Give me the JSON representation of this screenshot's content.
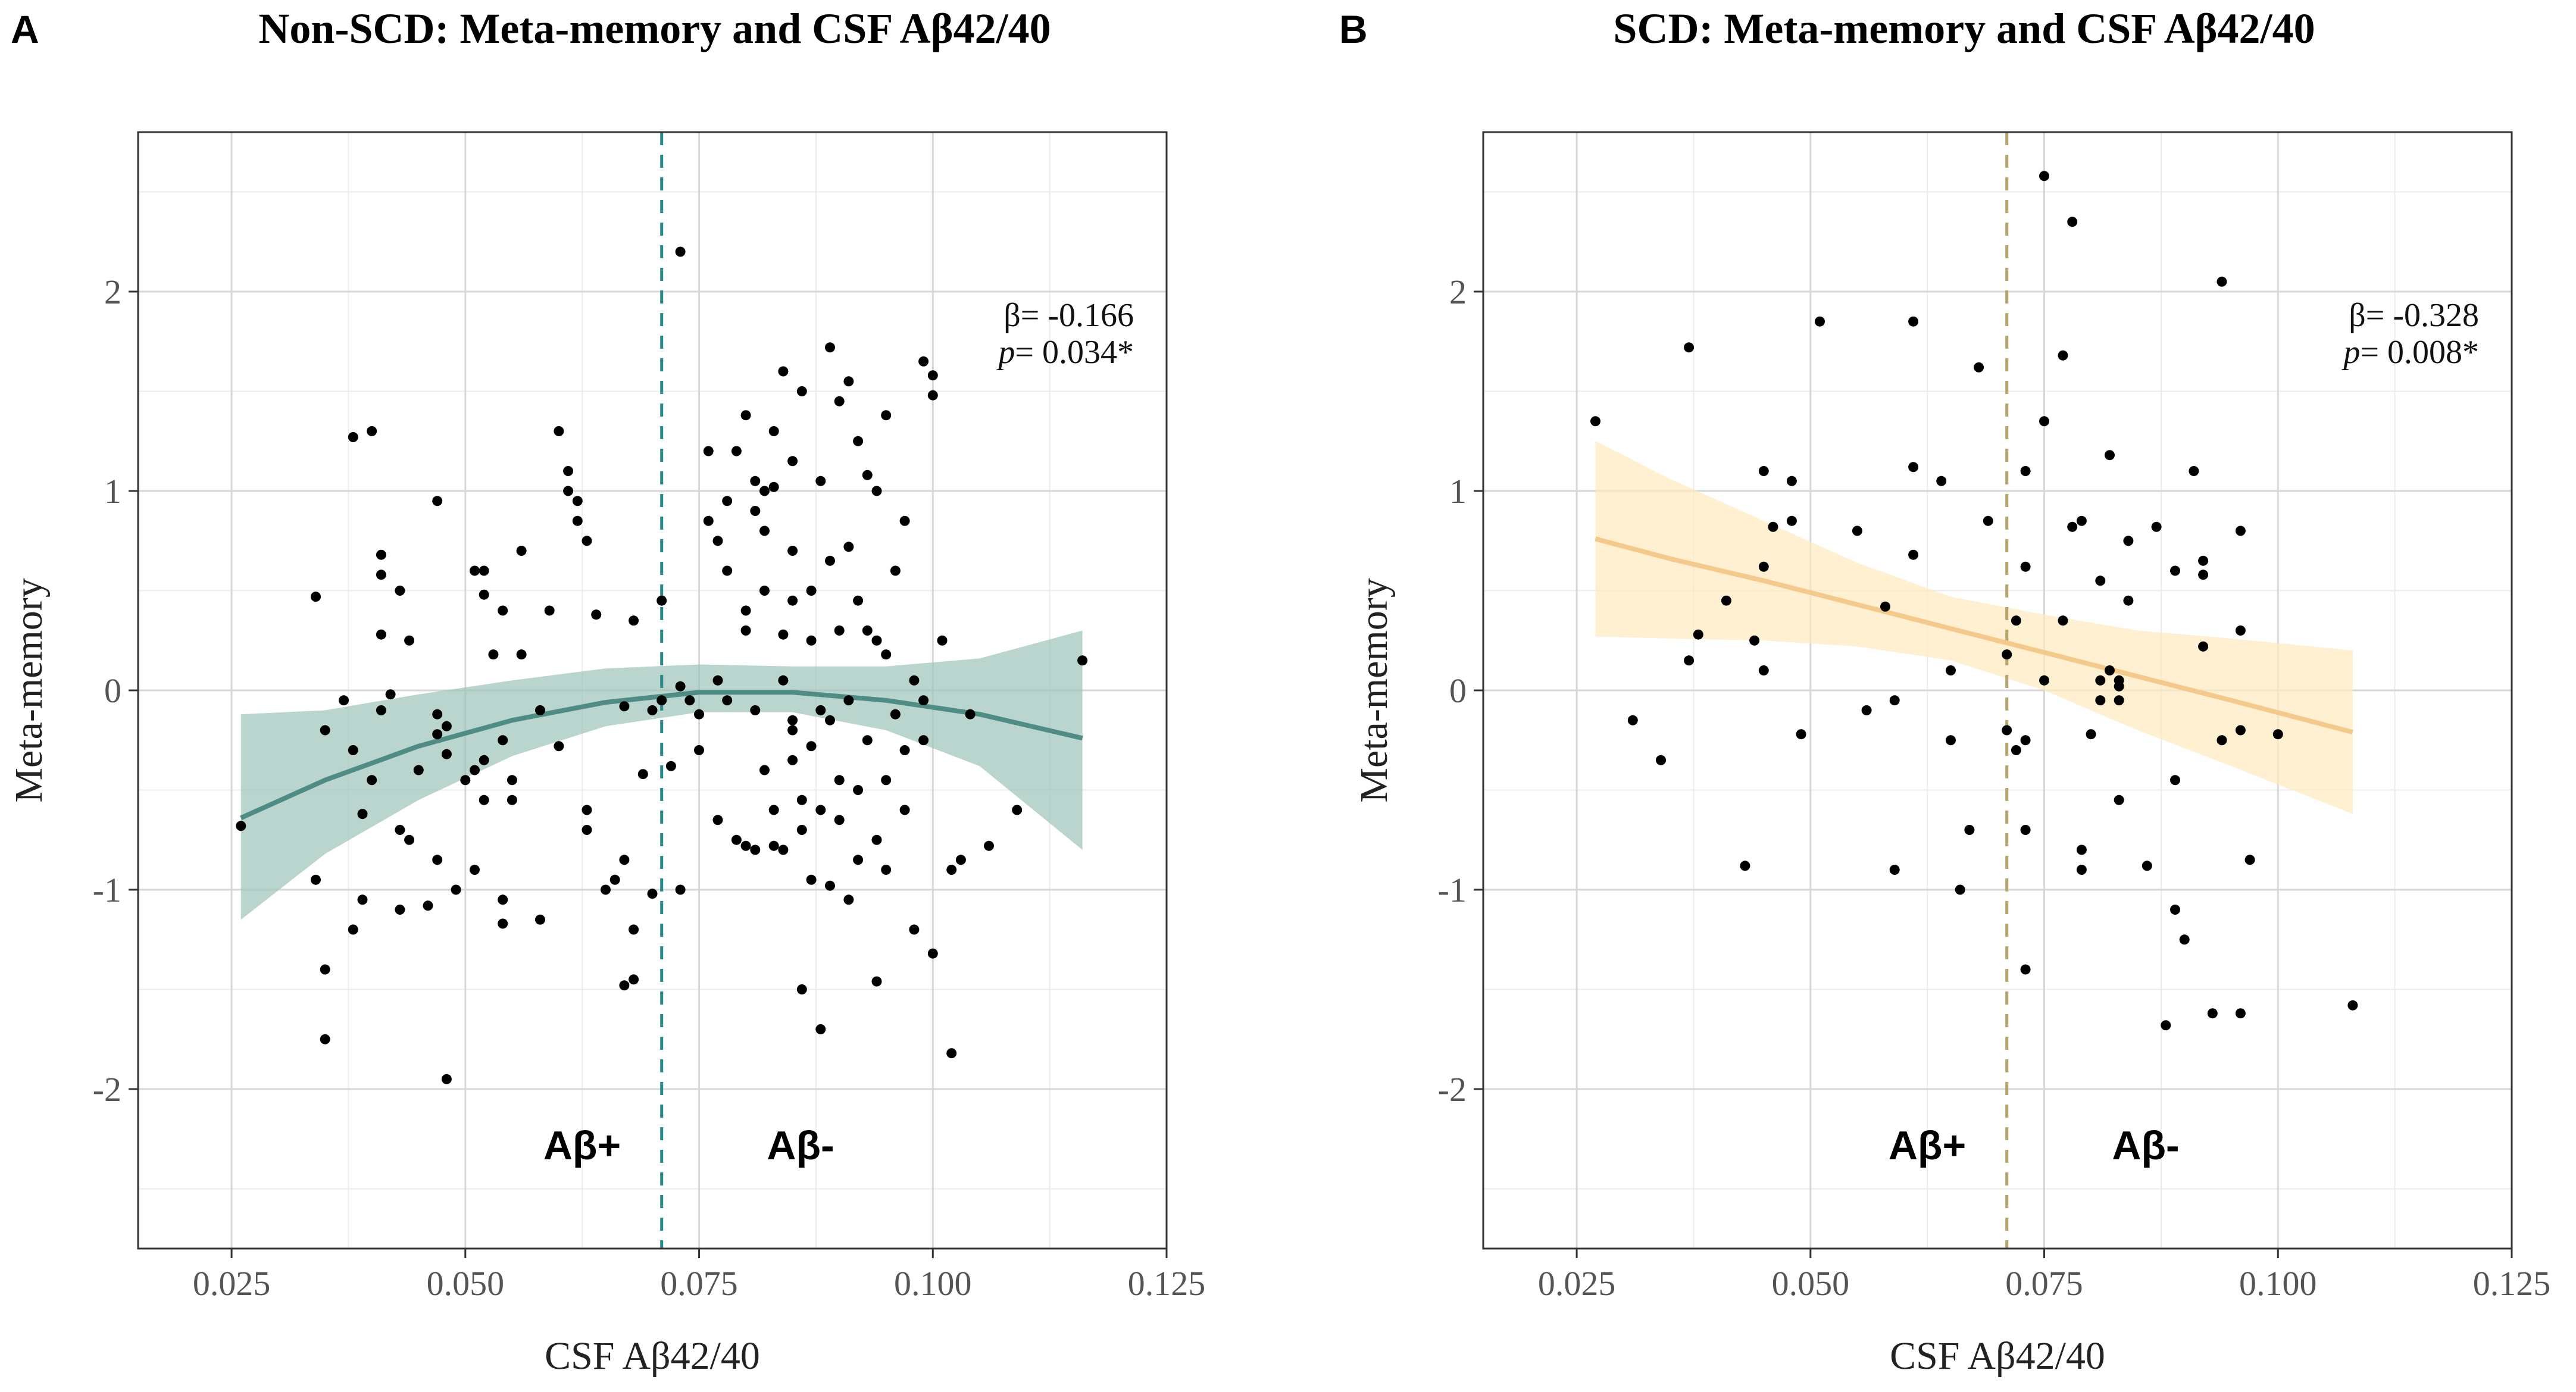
{
  "chart_data": [
    {
      "panel": "A",
      "type": "scatter",
      "title": "Non-SCD: Meta-memory and CSF Aβ42/40",
      "xlabel": "CSF Aβ42/40",
      "ylabel": "Meta-memory",
      "xlim": [
        0.015,
        0.125
      ],
      "ylim": [
        -2.8,
        2.8
      ],
      "xticks": [
        0.025,
        0.05,
        0.075,
        0.1,
        0.125
      ],
      "xtick_labels": [
        "0.025",
        "0.050",
        "0.075",
        "0.100",
        "0.125"
      ],
      "yticks": [
        -2,
        -1,
        0,
        1,
        2
      ],
      "ytick_labels": [
        "-2",
        "-1",
        "0",
        "1",
        "2"
      ],
      "cutoff": {
        "x": 0.071,
        "color": "#2b8a8a"
      },
      "region_labels": {
        "left": "Aβ+",
        "right": "Aβ-"
      },
      "stats": {
        "beta": "β= -0.166",
        "p_label": "p",
        "p_value": "= 0.034*"
      },
      "fit": {
        "kind": "quadratic",
        "line_color": "#4e8c84",
        "band_color": "#9cc2b9",
        "x": [
          0.026,
          0.035,
          0.045,
          0.055,
          0.065,
          0.075,
          0.085,
          0.095,
          0.105,
          0.116
        ],
        "y": [
          -0.64,
          -0.45,
          -0.28,
          -0.15,
          -0.06,
          -0.01,
          -0.01,
          -0.05,
          -0.12,
          -0.24
        ],
        "lower": [
          -1.15,
          -0.82,
          -0.55,
          -0.33,
          -0.18,
          -0.11,
          -0.11,
          -0.2,
          -0.38,
          -0.8
        ],
        "upper": [
          -0.12,
          -0.1,
          -0.02,
          0.05,
          0.11,
          0.13,
          0.12,
          0.12,
          0.16,
          0.3
        ]
      },
      "points": [
        [
          0.026,
          -0.68
        ],
        [
          0.034,
          0.47
        ],
        [
          0.034,
          -0.95
        ],
        [
          0.035,
          -1.4
        ],
        [
          0.035,
          -1.75
        ],
        [
          0.035,
          -0.2
        ],
        [
          0.037,
          -0.05
        ],
        [
          0.038,
          1.27
        ],
        [
          0.038,
          -1.2
        ],
        [
          0.038,
          -0.3
        ],
        [
          0.039,
          -0.62
        ],
        [
          0.039,
          -1.05
        ],
        [
          0.04,
          1.3
        ],
        [
          0.04,
          -0.45
        ],
        [
          0.041,
          0.68
        ],
        [
          0.041,
          0.58
        ],
        [
          0.041,
          0.28
        ],
        [
          0.041,
          -0.1
        ],
        [
          0.042,
          -0.02
        ],
        [
          0.043,
          0.5
        ],
        [
          0.043,
          -0.7
        ],
        [
          0.043,
          -1.1
        ],
        [
          0.044,
          0.25
        ],
        [
          0.044,
          -0.75
        ],
        [
          0.045,
          -0.4
        ],
        [
          0.046,
          -1.08
        ],
        [
          0.047,
          0.95
        ],
        [
          0.047,
          -0.12
        ],
        [
          0.047,
          -0.22
        ],
        [
          0.047,
          -0.85
        ],
        [
          0.048,
          -1.95
        ],
        [
          0.048,
          -0.18
        ],
        [
          0.048,
          -0.32
        ],
        [
          0.049,
          -1.0
        ],
        [
          0.05,
          -0.45
        ],
        [
          0.051,
          0.6
        ],
        [
          0.051,
          -0.9
        ],
        [
          0.051,
          -0.4
        ],
        [
          0.052,
          0.6
        ],
        [
          0.052,
          0.48
        ],
        [
          0.052,
          -0.35
        ],
        [
          0.052,
          -0.55
        ],
        [
          0.053,
          0.18
        ],
        [
          0.054,
          0.4
        ],
        [
          0.054,
          -1.05
        ],
        [
          0.054,
          -1.17
        ],
        [
          0.054,
          -0.25
        ],
        [
          0.055,
          -0.55
        ],
        [
          0.055,
          -0.45
        ],
        [
          0.056,
          0.7
        ],
        [
          0.056,
          0.18
        ],
        [
          0.058,
          -0.1
        ],
        [
          0.058,
          -1.15
        ],
        [
          0.059,
          0.4
        ],
        [
          0.06,
          1.3
        ],
        [
          0.06,
          -0.28
        ],
        [
          0.061,
          1.1
        ],
        [
          0.061,
          1.0
        ],
        [
          0.062,
          0.95
        ],
        [
          0.062,
          0.85
        ],
        [
          0.063,
          0.75
        ],
        [
          0.063,
          -0.6
        ],
        [
          0.063,
          -0.7
        ],
        [
          0.064,
          0.38
        ],
        [
          0.065,
          -1.0
        ],
        [
          0.066,
          -0.95
        ],
        [
          0.067,
          -1.48
        ],
        [
          0.067,
          -0.08
        ],
        [
          0.067,
          -0.85
        ],
        [
          0.068,
          0.35
        ],
        [
          0.068,
          -1.45
        ],
        [
          0.068,
          -1.2
        ],
        [
          0.069,
          -0.42
        ],
        [
          0.07,
          -0.1
        ],
        [
          0.07,
          -1.02
        ],
        [
          0.071,
          -0.05
        ],
        [
          0.071,
          0.45
        ],
        [
          0.072,
          -0.38
        ],
        [
          0.073,
          2.2
        ],
        [
          0.073,
          0.02
        ],
        [
          0.073,
          -1.0
        ],
        [
          0.074,
          -0.05
        ],
        [
          0.075,
          -0.3
        ],
        [
          0.075,
          -0.12
        ],
        [
          0.076,
          1.2
        ],
        [
          0.076,
          0.85
        ],
        [
          0.077,
          0.75
        ],
        [
          0.077,
          0.05
        ],
        [
          0.077,
          -0.65
        ],
        [
          0.078,
          0.95
        ],
        [
          0.078,
          0.6
        ],
        [
          0.078,
          -0.05
        ],
        [
          0.079,
          1.2
        ],
        [
          0.079,
          -0.75
        ],
        [
          0.08,
          1.38
        ],
        [
          0.08,
          0.4
        ],
        [
          0.08,
          0.3
        ],
        [
          0.08,
          -0.78
        ],
        [
          0.081,
          1.05
        ],
        [
          0.081,
          0.9
        ],
        [
          0.081,
          -0.1
        ],
        [
          0.081,
          -0.8
        ],
        [
          0.082,
          1.0
        ],
        [
          0.082,
          0.8
        ],
        [
          0.082,
          0.5
        ],
        [
          0.082,
          -0.4
        ],
        [
          0.083,
          1.3
        ],
        [
          0.083,
          1.02
        ],
        [
          0.083,
          -0.6
        ],
        [
          0.083,
          -0.78
        ],
        [
          0.084,
          1.6
        ],
        [
          0.084,
          0.28
        ],
        [
          0.084,
          0.05
        ],
        [
          0.084,
          -0.8
        ],
        [
          0.085,
          1.15
        ],
        [
          0.085,
          0.7
        ],
        [
          0.085,
          0.45
        ],
        [
          0.085,
          -0.15
        ],
        [
          0.085,
          -0.2
        ],
        [
          0.085,
          -0.35
        ],
        [
          0.086,
          1.5
        ],
        [
          0.086,
          -0.55
        ],
        [
          0.086,
          -1.5
        ],
        [
          0.086,
          -0.7
        ],
        [
          0.087,
          0.5
        ],
        [
          0.087,
          0.25
        ],
        [
          0.087,
          -0.28
        ],
        [
          0.087,
          -0.95
        ],
        [
          0.088,
          1.05
        ],
        [
          0.088,
          -1.7
        ],
        [
          0.088,
          -0.1
        ],
        [
          0.088,
          -0.6
        ],
        [
          0.089,
          1.72
        ],
        [
          0.089,
          0.65
        ],
        [
          0.089,
          -0.15
        ],
        [
          0.089,
          -0.98
        ],
        [
          0.09,
          1.45
        ],
        [
          0.09,
          0.3
        ],
        [
          0.09,
          -0.45
        ],
        [
          0.09,
          -0.65
        ],
        [
          0.091,
          1.55
        ],
        [
          0.091,
          0.72
        ],
        [
          0.091,
          -0.05
        ],
        [
          0.091,
          -1.05
        ],
        [
          0.092,
          1.25
        ],
        [
          0.092,
          0.45
        ],
        [
          0.092,
          -0.5
        ],
        [
          0.092,
          -0.85
        ],
        [
          0.093,
          1.08
        ],
        [
          0.093,
          0.3
        ],
        [
          0.093,
          -0.25
        ],
        [
          0.094,
          1.0
        ],
        [
          0.094,
          0.25
        ],
        [
          0.094,
          -0.75
        ],
        [
          0.094,
          -1.46
        ],
        [
          0.095,
          1.38
        ],
        [
          0.095,
          0.18
        ],
        [
          0.095,
          -0.45
        ],
        [
          0.095,
          -0.9
        ],
        [
          0.096,
          0.6
        ],
        [
          0.096,
          -0.12
        ],
        [
          0.097,
          0.85
        ],
        [
          0.097,
          -0.3
        ],
        [
          0.097,
          -0.6
        ],
        [
          0.098,
          0.05
        ],
        [
          0.098,
          -1.2
        ],
        [
          0.099,
          1.65
        ],
        [
          0.099,
          -0.05
        ],
        [
          0.099,
          -0.25
        ],
        [
          0.1,
          1.48
        ],
        [
          0.1,
          1.58
        ],
        [
          0.1,
          -1.32
        ],
        [
          0.101,
          0.25
        ],
        [
          0.102,
          -1.82
        ],
        [
          0.102,
          -0.9
        ],
        [
          0.103,
          -0.85
        ],
        [
          0.104,
          -0.12
        ],
        [
          0.106,
          -0.78
        ],
        [
          0.109,
          -0.6
        ],
        [
          0.116,
          0.15
        ]
      ]
    },
    {
      "panel": "B",
      "type": "scatter",
      "title": "SCD: Meta-memory and CSF Aβ42/40",
      "xlabel": "CSF Aβ42/40",
      "ylabel": "Meta-memory",
      "xlim": [
        0.015,
        0.125
      ],
      "ylim": [
        -2.8,
        2.8
      ],
      "xticks": [
        0.025,
        0.05,
        0.075,
        0.1,
        0.125
      ],
      "xtick_labels": [
        "0.025",
        "0.050",
        "0.075",
        "0.100",
        "0.125"
      ],
      "yticks": [
        -2,
        -1,
        0,
        1,
        2
      ],
      "ytick_labels": [
        "-2",
        "-1",
        "0",
        "1",
        "2"
      ],
      "cutoff": {
        "x": 0.071,
        "color": "#b8a56a"
      },
      "region_labels": {
        "left": "Aβ+",
        "right": "Aβ-"
      },
      "stats": {
        "beta": "β= -0.328",
        "p_label": "p",
        "p_value": "= 0.008*"
      },
      "fit": {
        "kind": "linear",
        "line_color": "#f5c98b",
        "band_color": "#fde9bd",
        "x": [
          0.027,
          0.035,
          0.045,
          0.055,
          0.065,
          0.075,
          0.085,
          0.095,
          0.108
        ],
        "y": [
          0.76,
          0.66,
          0.55,
          0.43,
          0.31,
          0.19,
          0.07,
          -0.05,
          -0.21
        ],
        "lower": [
          0.27,
          0.26,
          0.25,
          0.22,
          0.15,
          0.0,
          -0.2,
          -0.38,
          -0.62
        ],
        "upper": [
          1.25,
          1.06,
          0.85,
          0.64,
          0.47,
          0.38,
          0.3,
          0.26,
          0.2
        ]
      },
      "points": [
        [
          0.027,
          1.35
        ],
        [
          0.031,
          -0.15
        ],
        [
          0.034,
          -0.35
        ],
        [
          0.037,
          1.72
        ],
        [
          0.037,
          0.15
        ],
        [
          0.038,
          0.28
        ],
        [
          0.041,
          0.45
        ],
        [
          0.043,
          -0.88
        ],
        [
          0.044,
          0.25
        ],
        [
          0.045,
          1.1
        ],
        [
          0.045,
          0.62
        ],
        [
          0.045,
          0.1
        ],
        [
          0.046,
          0.82
        ],
        [
          0.048,
          1.05
        ],
        [
          0.048,
          0.85
        ],
        [
          0.049,
          -0.22
        ],
        [
          0.051,
          1.85
        ],
        [
          0.055,
          0.8
        ],
        [
          0.056,
          -0.1
        ],
        [
          0.058,
          0.42
        ],
        [
          0.059,
          -0.05
        ],
        [
          0.059,
          -0.9
        ],
        [
          0.061,
          1.12
        ],
        [
          0.061,
          0.68
        ],
        [
          0.061,
          1.85
        ],
        [
          0.064,
          1.05
        ],
        [
          0.065,
          0.1
        ],
        [
          0.065,
          -0.25
        ],
        [
          0.066,
          -1.0
        ],
        [
          0.067,
          -0.7
        ],
        [
          0.068,
          1.62
        ],
        [
          0.069,
          0.85
        ],
        [
          0.071,
          0.18
        ],
        [
          0.071,
          -0.2
        ],
        [
          0.072,
          -0.3
        ],
        [
          0.072,
          0.35
        ],
        [
          0.073,
          1.1
        ],
        [
          0.073,
          0.62
        ],
        [
          0.073,
          -0.7
        ],
        [
          0.073,
          -1.4
        ],
        [
          0.073,
          -0.25
        ],
        [
          0.075,
          2.58
        ],
        [
          0.075,
          1.35
        ],
        [
          0.075,
          0.05
        ],
        [
          0.077,
          1.68
        ],
        [
          0.077,
          0.35
        ],
        [
          0.078,
          2.35
        ],
        [
          0.078,
          0.82
        ],
        [
          0.079,
          0.85
        ],
        [
          0.079,
          -0.8
        ],
        [
          0.079,
          -0.9
        ],
        [
          0.08,
          -0.22
        ],
        [
          0.081,
          0.55
        ],
        [
          0.081,
          0.05
        ],
        [
          0.081,
          -0.05
        ],
        [
          0.082,
          1.18
        ],
        [
          0.082,
          0.1
        ],
        [
          0.083,
          0.05
        ],
        [
          0.083,
          0.02
        ],
        [
          0.083,
          -0.05
        ],
        [
          0.083,
          -0.55
        ],
        [
          0.084,
          0.75
        ],
        [
          0.084,
          0.45
        ],
        [
          0.086,
          -0.88
        ],
        [
          0.087,
          0.82
        ],
        [
          0.088,
          -1.68
        ],
        [
          0.089,
          0.6
        ],
        [
          0.089,
          -0.45
        ],
        [
          0.089,
          -1.1
        ],
        [
          0.09,
          -1.25
        ],
        [
          0.091,
          1.1
        ],
        [
          0.092,
          0.65
        ],
        [
          0.092,
          0.58
        ],
        [
          0.092,
          0.22
        ],
        [
          0.093,
          -1.62
        ],
        [
          0.094,
          2.05
        ],
        [
          0.094,
          -0.25
        ],
        [
          0.096,
          0.8
        ],
        [
          0.096,
          0.3
        ],
        [
          0.096,
          -0.2
        ],
        [
          0.096,
          -1.62
        ],
        [
          0.097,
          -0.85
        ],
        [
          0.1,
          -0.22
        ],
        [
          0.108,
          -1.58
        ]
      ]
    }
  ]
}
